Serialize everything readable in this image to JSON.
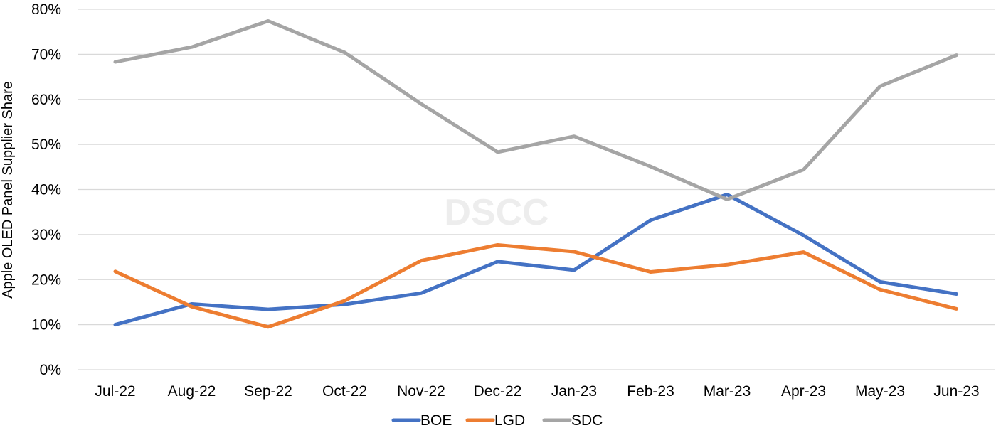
{
  "chart_data": {
    "type": "line",
    "title": "",
    "xlabel": "",
    "ylabel": "Apple OLED Panel Supplier Share",
    "ylim": [
      0,
      80
    ],
    "yticks": [
      "0%",
      "10%",
      "20%",
      "30%",
      "40%",
      "50%",
      "60%",
      "70%",
      "80%"
    ],
    "categories": [
      "Jul-22",
      "Aug-22",
      "Sep-22",
      "Oct-22",
      "Nov-22",
      "Dec-22",
      "Jan-23",
      "Feb-23",
      "Mar-23",
      "Apr-23",
      "May-23",
      "Jun-23"
    ],
    "series": [
      {
        "name": "BOE",
        "color": "#4472C4",
        "values": [
          10.0,
          14.6,
          13.4,
          14.5,
          17.0,
          24.0,
          22.1,
          33.2,
          38.9,
          29.8,
          19.5,
          16.8
        ]
      },
      {
        "name": "LGD",
        "color": "#ED7D31",
        "values": [
          21.8,
          14.0,
          9.5,
          15.3,
          24.2,
          27.7,
          26.2,
          21.7,
          23.3,
          26.1,
          17.8,
          13.5
        ]
      },
      {
        "name": "SDC",
        "color": "#A5A5A5",
        "values": [
          68.3,
          71.6,
          77.4,
          70.4,
          59.0,
          48.3,
          51.8,
          45.1,
          37.8,
          44.4,
          62.9,
          69.8
        ]
      }
    ],
    "grid": true,
    "legend": "bottom-center",
    "watermark": "DSCC"
  }
}
